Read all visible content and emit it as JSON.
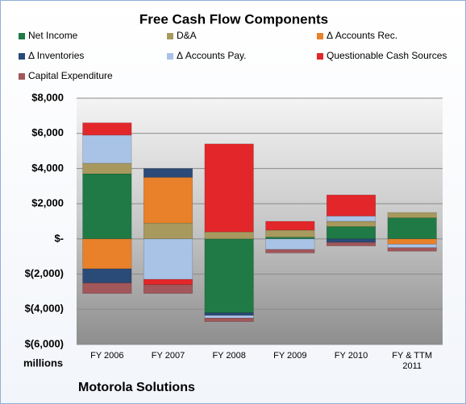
{
  "chart_data": {
    "type": "stacked_bar",
    "title": "Free Cash Flow Components",
    "y_label": "millions",
    "footer": "Motorola Solutions",
    "categories": [
      "FY 2006",
      "FY 2007",
      "FY 2008",
      "FY 2009",
      "FY 2010",
      "FY & TTM 2011"
    ],
    "series": [
      {
        "name": "Net Income",
        "color": "#1f7a45",
        "values": [
          3700,
          0,
          -4200,
          100,
          700,
          1200
        ]
      },
      {
        "name": "D&A",
        "color": "#a89a5e",
        "values": [
          600,
          900,
          400,
          400,
          300,
          300
        ]
      },
      {
        "name": "Δ Accounts Rec.",
        "color": "#e8812a",
        "values": [
          -1700,
          2600,
          0,
          0,
          0,
          -300
        ]
      },
      {
        "name": "Δ Inventories",
        "color": "#2a4a78",
        "values": [
          -800,
          500,
          -150,
          0,
          -200,
          0
        ]
      },
      {
        "name": "Δ Accounts Pay.",
        "color": "#a9c3e6",
        "values": [
          1600,
          -2300,
          -150,
          -600,
          300,
          -200
        ]
      },
      {
        "name": "Questionable Cash Sources",
        "color": "#e3262a",
        "values": [
          700,
          -300,
          5000,
          500,
          1200,
          0
        ]
      },
      {
        "name": "Capital Expenditure",
        "color": "#a2575a",
        "values": [
          -600,
          -500,
          -200,
          -200,
          -200,
          -200
        ]
      }
    ],
    "ylim": [
      -6000,
      8000
    ],
    "yticks": [
      {
        "value": -6000,
        "label": "$(6,000)"
      },
      {
        "value": -4000,
        "label": "$(4,000)"
      },
      {
        "value": -2000,
        "label": "$(2,000)"
      },
      {
        "value": 0,
        "label": "$-"
      },
      {
        "value": 2000,
        "label": "$2,000"
      },
      {
        "value": 4000,
        "label": "$4,000"
      },
      {
        "value": 6000,
        "label": "$6,000"
      },
      {
        "value": 8000,
        "label": "$8,000"
      }
    ],
    "grid": true
  }
}
